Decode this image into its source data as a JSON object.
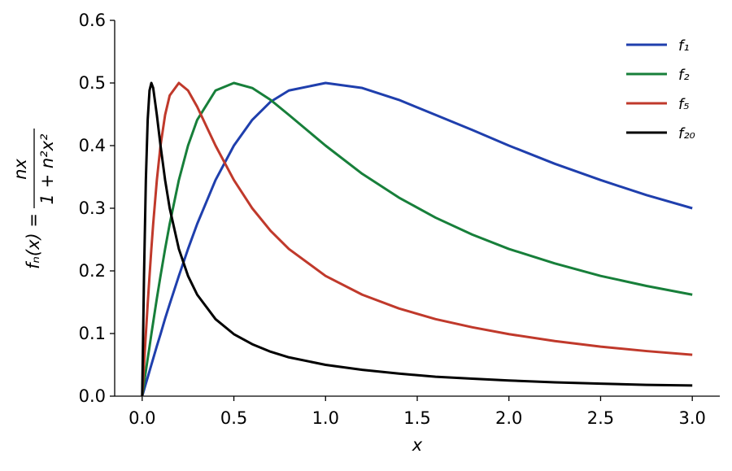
{
  "chart_data": {
    "type": "line",
    "xlabel": "x",
    "ylabel": {
      "lhs": "fₙ(x) =",
      "numerator": "nx",
      "denominator": "1 + n²x²"
    },
    "x": [
      0,
      0.01,
      0.02,
      0.03,
      0.04,
      0.05,
      0.06,
      0.08,
      0.1,
      0.125,
      0.15,
      0.2,
      0.25,
      0.3,
      0.4,
      0.5,
      0.6,
      0.7,
      0.8,
      1.0,
      1.2,
      1.4,
      1.6,
      1.8,
      2.0,
      2.25,
      2.5,
      2.75,
      3.0
    ],
    "series": [
      {
        "name": "f₁",
        "color": "#1f3fad",
        "values": [
          0,
          0.01,
          0.02,
          0.03,
          0.04,
          0.05,
          0.06,
          0.08,
          0.099,
          0.124,
          0.147,
          0.192,
          0.235,
          0.275,
          0.345,
          0.4,
          0.441,
          0.47,
          0.488,
          0.5,
          0.492,
          0.473,
          0.449,
          0.425,
          0.4,
          0.371,
          0.345,
          0.321,
          0.3
        ]
      },
      {
        "name": "f₂",
        "color": "#177f3a",
        "values": [
          0,
          0.02,
          0.04,
          0.06,
          0.079,
          0.099,
          0.118,
          0.156,
          0.192,
          0.235,
          0.275,
          0.345,
          0.4,
          0.441,
          0.488,
          0.5,
          0.492,
          0.473,
          0.449,
          0.4,
          0.355,
          0.317,
          0.285,
          0.258,
          0.235,
          0.212,
          0.192,
          0.176,
          0.162
        ]
      },
      {
        "name": "f₅",
        "color": "#c0392b",
        "values": [
          0,
          0.05,
          0.099,
          0.147,
          0.192,
          0.235,
          0.275,
          0.345,
          0.4,
          0.449,
          0.48,
          0.5,
          0.488,
          0.462,
          0.4,
          0.345,
          0.3,
          0.264,
          0.235,
          0.192,
          0.162,
          0.14,
          0.123,
          0.11,
          0.099,
          0.088,
          0.079,
          0.072,
          0.066
        ]
      },
      {
        "name": "f₂₀",
        "color": "#000000",
        "values": [
          0,
          0.192,
          0.345,
          0.441,
          0.488,
          0.5,
          0.492,
          0.449,
          0.4,
          0.345,
          0.3,
          0.235,
          0.192,
          0.162,
          0.123,
          0.099,
          0.083,
          0.071,
          0.062,
          0.05,
          0.042,
          0.036,
          0.031,
          0.028,
          0.025,
          0.022,
          0.02,
          0.018,
          0.017
        ]
      }
    ],
    "xlim": [
      -0.15,
      3.15
    ],
    "ylim": [
      0,
      0.6
    ],
    "xticks": [
      {
        "value": 0,
        "label": "0.0"
      },
      0.5,
      {
        "value": 1,
        "label": "1.0"
      },
      1.5,
      {
        "value": 2,
        "label": "2.0"
      },
      2.5,
      {
        "value": 3,
        "label": "3.0"
      }
    ],
    "yticks": [
      {
        "value": 0,
        "label": "0.0"
      },
      0.1,
      0.2,
      0.3,
      0.4,
      0.5,
      0.6
    ],
    "grid": false,
    "legend": "upper right"
  }
}
